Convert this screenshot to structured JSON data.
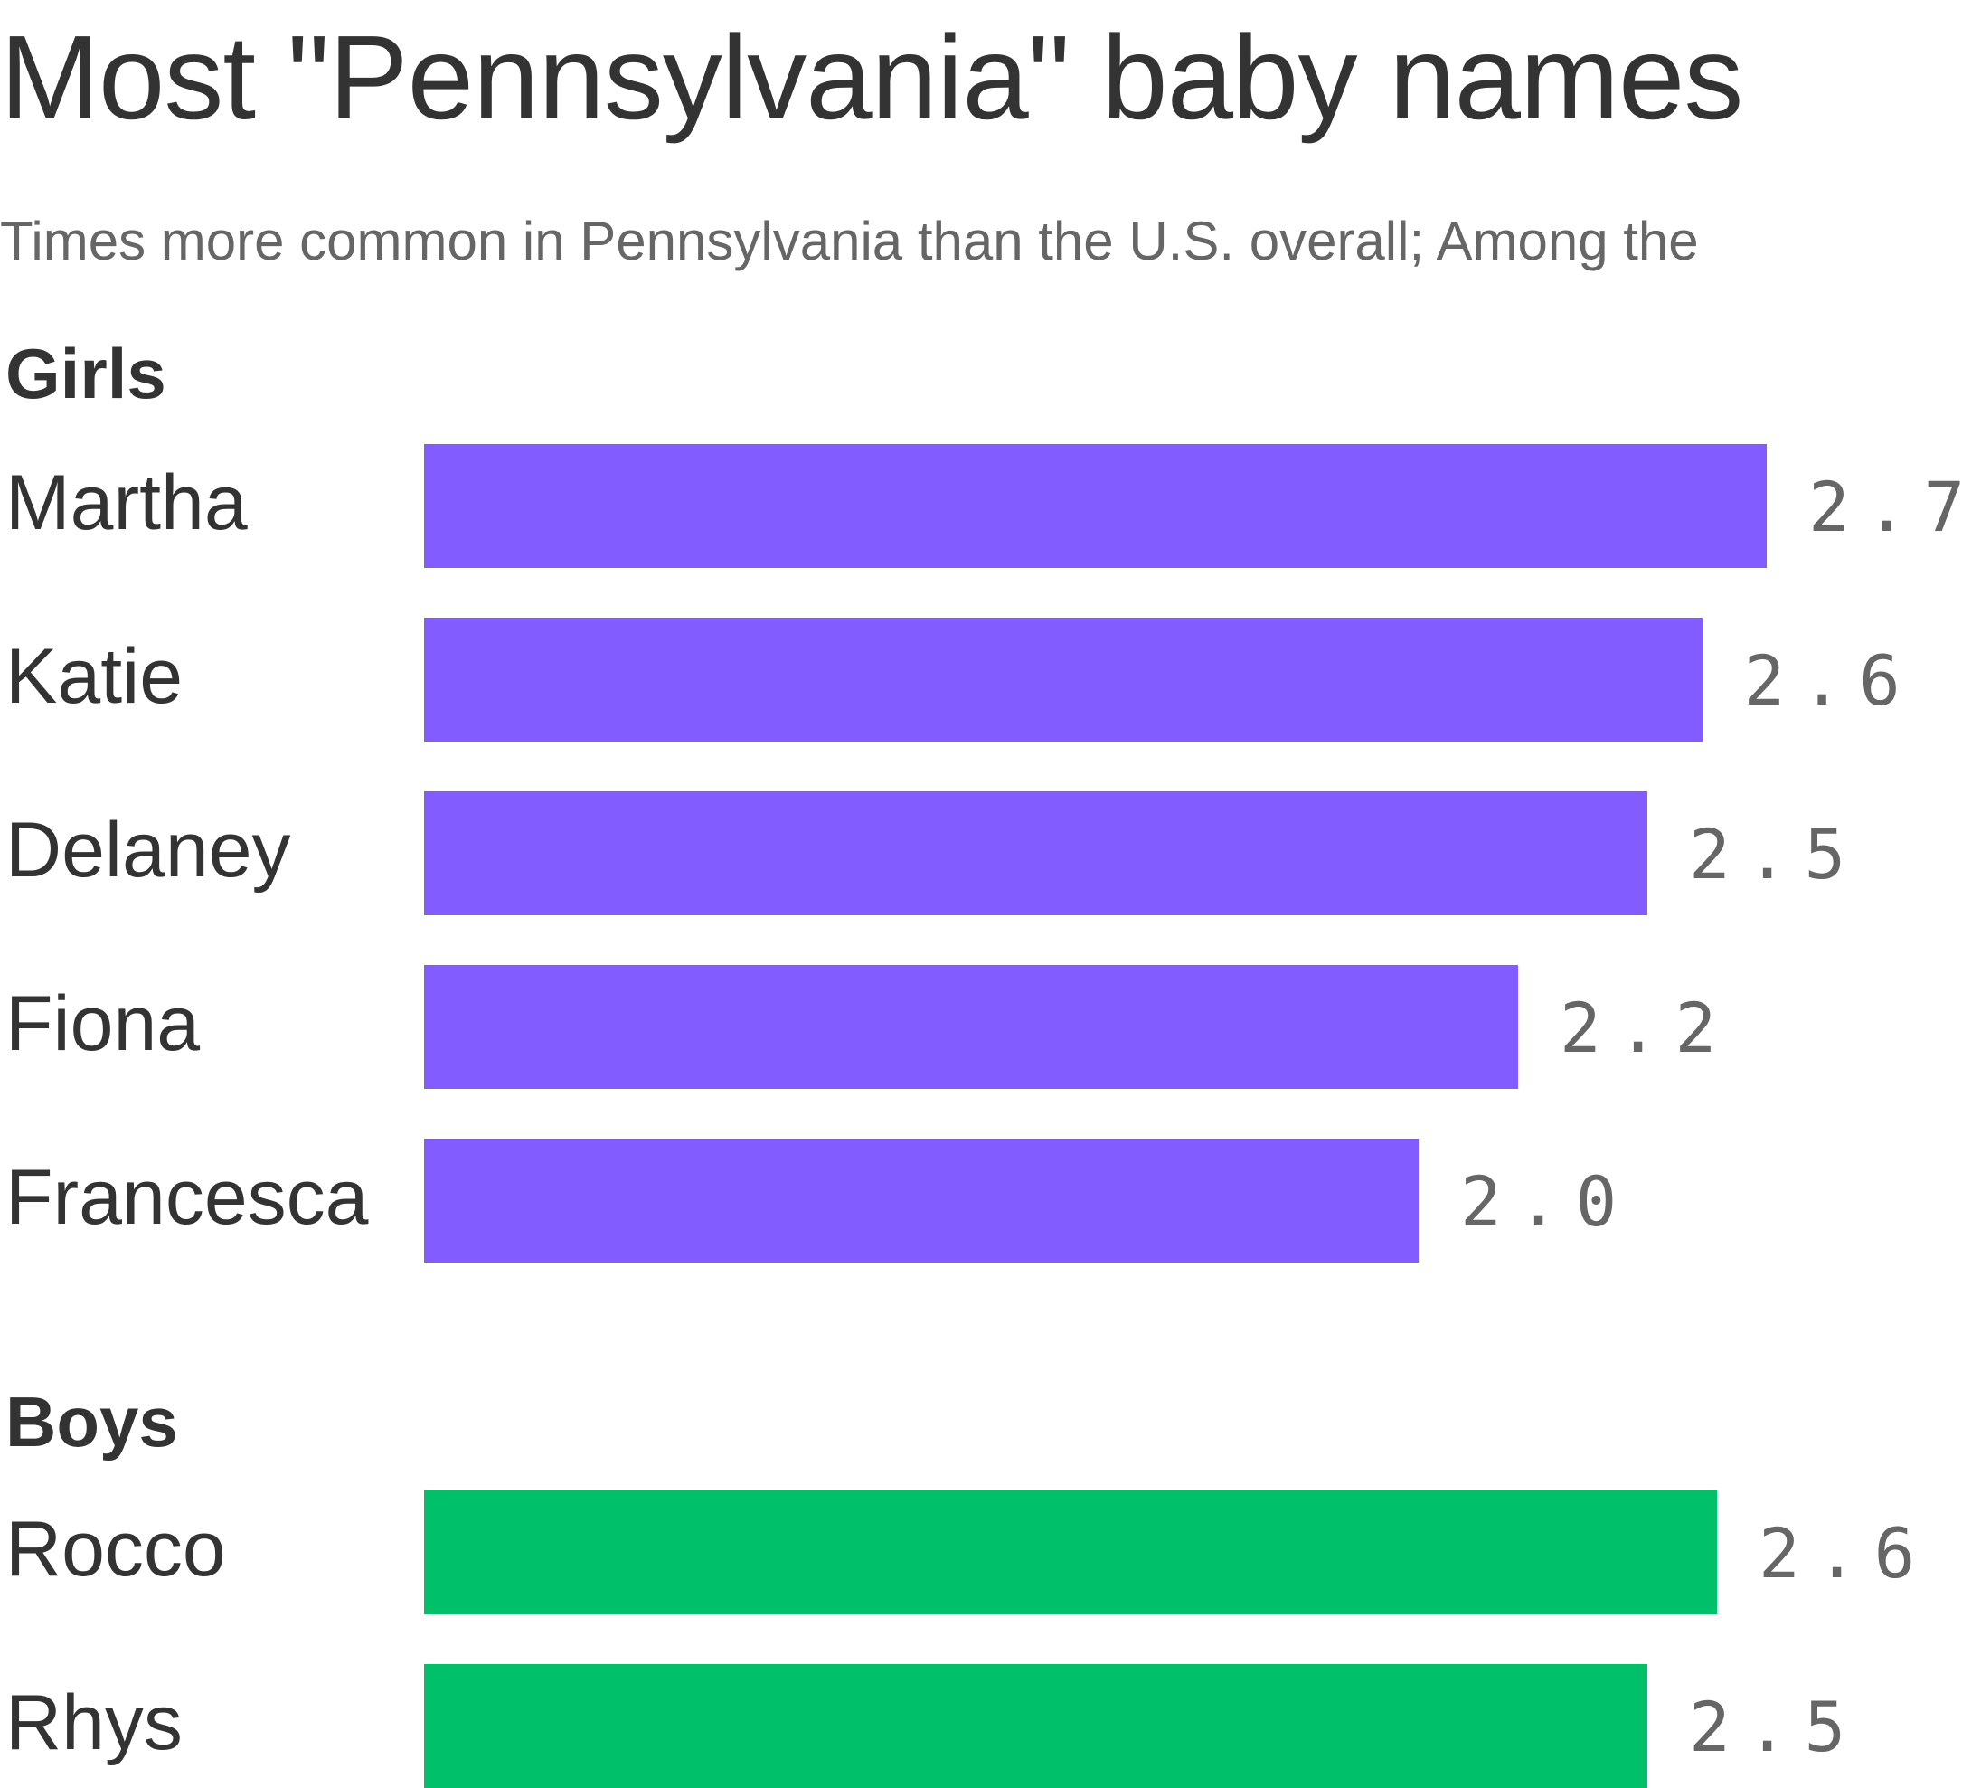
{
  "chart_data": {
    "type": "bar",
    "orientation": "horizontal",
    "title": "Most \"Pennsylvania\" baby names",
    "subtitle": "Times more common in Pennsylvania than the U.S. overall; Among the",
    "xlabel": "",
    "ylabel": "",
    "xlim": [
      0,
      2.7
    ],
    "grid": false,
    "groups": [
      {
        "label": "Girls",
        "color": "#825cff",
        "categories": [
          "Martha",
          "Katie",
          "Delaney",
          "Fiona",
          "Francesca"
        ],
        "values": [
          2.7,
          2.57,
          2.46,
          2.2,
          2.0
        ]
      },
      {
        "label": "Boys",
        "color": "#00c16a",
        "categories": [
          "Rocco",
          "Rhys"
        ],
        "values": [
          2.6,
          2.46
        ]
      }
    ]
  }
}
